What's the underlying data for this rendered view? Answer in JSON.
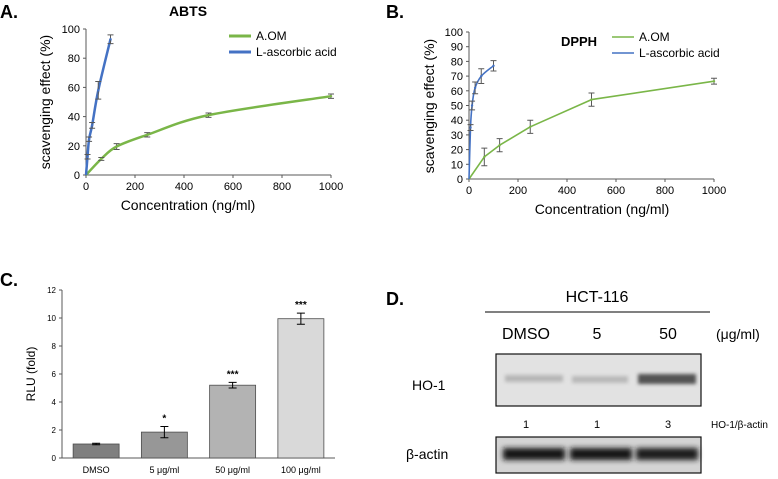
{
  "colors": {
    "aom": "#7ab648",
    "ascorbic": "#4472c4",
    "axis": "#595959",
    "err": "#595959"
  },
  "chart_data": [
    {
      "panel": "A.",
      "type": "line",
      "title": "ABTS",
      "xlabel": "Concentration (ng/ml)",
      "ylabel": "scavenging effect  (%)",
      "xlim": [
        0,
        1000
      ],
      "ylim": [
        0,
        100
      ],
      "xticks": [
        "0",
        "200",
        "400",
        "600",
        "800",
        "1000"
      ],
      "yticks": [
        "0",
        "20",
        "40",
        "60",
        "80",
        "100"
      ],
      "legend": "top-right",
      "series": [
        {
          "name": "A.OM",
          "color": "aom",
          "smooth": true,
          "x": [
            0,
            62.5,
            125,
            250,
            500,
            1000
          ],
          "y": [
            0,
            11,
            19.5,
            27.5,
            41,
            54
          ],
          "err": [
            0,
            1,
            2,
            1.5,
            1.5,
            1.5
          ]
        },
        {
          "name": "L-ascorbic acid",
          "color": "ascorbic",
          "smooth": true,
          "x": [
            0,
            6.25,
            12.5,
            25,
            50,
            100
          ],
          "y": [
            0,
            12.5,
            24.5,
            34,
            58,
            93
          ],
          "err": [
            0,
            1.5,
            1.5,
            2,
            6,
            3
          ]
        }
      ]
    },
    {
      "panel": "B.",
      "type": "line",
      "title": "DPPH",
      "xlabel": "Concentration (ng/ml)",
      "ylabel": "scavenging effect  (%)",
      "xlim": [
        0,
        1000
      ],
      "ylim": [
        0,
        100
      ],
      "xticks": [
        "0",
        "200",
        "400",
        "600",
        "800",
        "1000"
      ],
      "yticks": [
        "0",
        "10",
        "20",
        "30",
        "40",
        "50",
        "60",
        "70",
        "80",
        "90",
        "100"
      ],
      "legend": "top-right",
      "series": [
        {
          "name": "A.OM",
          "color": "aom",
          "smooth": false,
          "x": [
            0,
            62.5,
            125,
            250,
            500,
            1000
          ],
          "y": [
            0,
            15,
            23,
            35.5,
            54,
            66.5
          ],
          "err": [
            0,
            6,
            4.5,
            4.5,
            4.5,
            2
          ]
        },
        {
          "name": "L-ascorbic acid",
          "color": "ascorbic",
          "smooth": true,
          "x": [
            0,
            6.25,
            12.5,
            25,
            50,
            100
          ],
          "y": [
            0,
            35,
            50,
            62,
            70,
            77
          ],
          "err": [
            0,
            2,
            3,
            4,
            5,
            3.5
          ]
        }
      ]
    },
    {
      "panel": "C.",
      "type": "bar",
      "title": "",
      "xlabel": "",
      "ylabel": "RLU (fold)",
      "ylim": [
        0,
        12
      ],
      "yticks": [
        "0",
        "2",
        "4",
        "6",
        "8",
        "10",
        "12"
      ],
      "categories": [
        "DMSO",
        "5 μg/ml",
        "50 μg/ml",
        "100 μg/ml"
      ],
      "values": [
        1.0,
        1.85,
        5.2,
        9.95
      ],
      "errors": [
        0.05,
        0.4,
        0.2,
        0.4
      ],
      "significance": [
        "",
        "*",
        "***",
        "***"
      ],
      "bar_colors": [
        "#7f7f7f",
        "#979797",
        "#b3b3b3",
        "#d9d9d9"
      ]
    }
  ],
  "western": {
    "panel": "D.",
    "cell_line": "HCT-116",
    "lanes": [
      "DMSO",
      "5",
      "50"
    ],
    "unit": "(μg/ml)",
    "row1_label": "HO-1",
    "ratios": [
      "1",
      "1",
      "3"
    ],
    "ratio_label": "HO-1/β-actin",
    "row2_label": "β-actin"
  }
}
